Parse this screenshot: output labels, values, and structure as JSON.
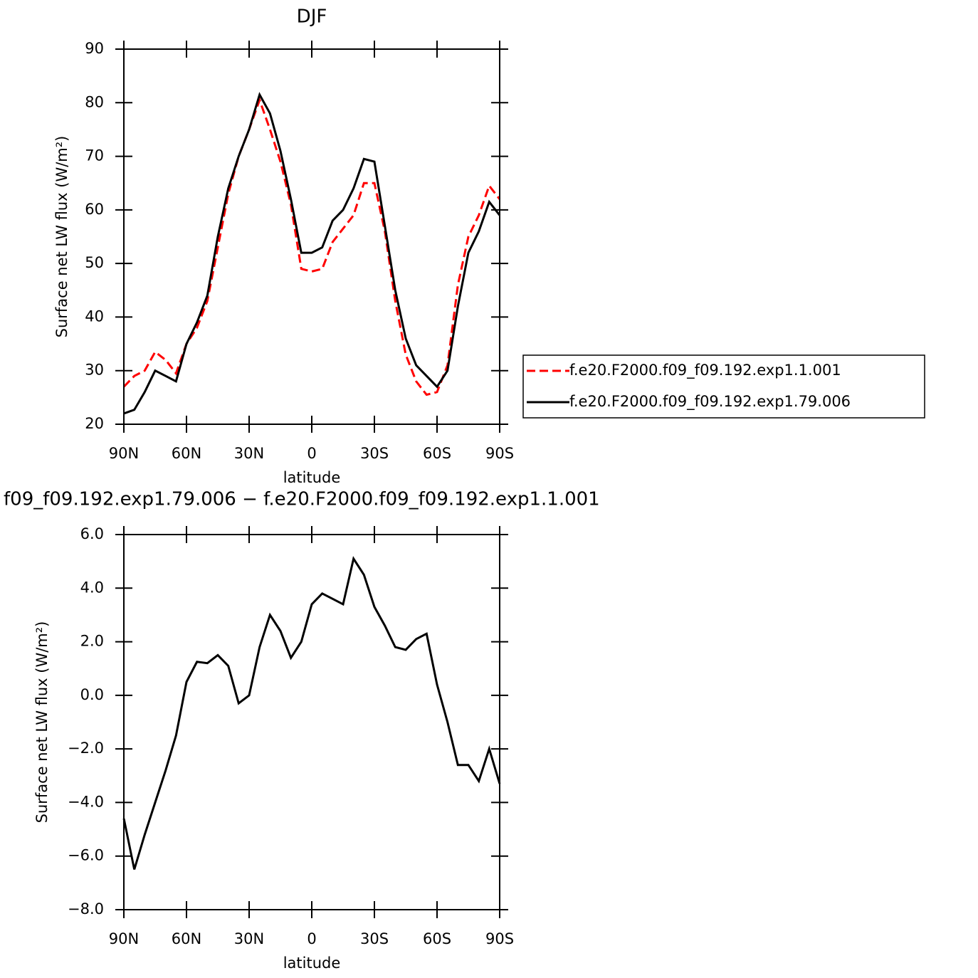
{
  "chart_data": [
    {
      "type": "line",
      "title": "DJF",
      "xlabel": "latitude",
      "ylabel": "Surface net LW flux (W/m²)",
      "x": [
        90,
        85,
        80,
        75,
        70,
        65,
        60,
        55,
        50,
        45,
        40,
        35,
        30,
        25,
        20,
        15,
        10,
        5,
        0,
        -5,
        -10,
        -15,
        -20,
        -25,
        -30,
        -35,
        -40,
        -45,
        -50,
        -55,
        -60,
        -65,
        -70,
        -75,
        -80,
        -85,
        -90
      ],
      "series": [
        {
          "name": "f.e20.F2000.f09_f09.192.exp1.1.001",
          "color": "#ff0000",
          "style": "dashed",
          "values": [
            27,
            29,
            30,
            33.5,
            32,
            29.5,
            35,
            38,
            43,
            53,
            63,
            70,
            75,
            80.5,
            75,
            69,
            61,
            49,
            48.5,
            49,
            54,
            56.5,
            59,
            65,
            65,
            56,
            43,
            33,
            28,
            25.5,
            26,
            31,
            46,
            55,
            59,
            64.5,
            62
          ]
        },
        {
          "name": "f.e20.F2000.f09_f09.192.exp1.79.006",
          "color": "#000000",
          "style": "solid",
          "values": [
            22,
            22.7,
            26,
            30,
            29,
            28,
            35,
            39,
            44,
            55,
            64,
            70,
            75,
            81.5,
            78,
            71,
            62,
            52,
            52,
            53,
            58,
            60,
            64,
            69.5,
            69,
            57,
            45,
            36,
            31,
            29,
            27,
            30,
            42,
            52,
            56,
            61.5,
            59
          ]
        }
      ],
      "xlim": [
        90,
        -90
      ],
      "xticks": [
        {
          "value": 90,
          "label": "90N"
        },
        {
          "value": 60,
          "label": "60N"
        },
        {
          "value": 30,
          "label": "30N"
        },
        0,
        {
          "value": -30,
          "label": "30S"
        },
        {
          "value": -60,
          "label": "60S"
        },
        {
          "value": -90,
          "label": "90S"
        }
      ],
      "ylim": [
        20,
        90
      ],
      "yticks": [
        20,
        30,
        40,
        50,
        60,
        70,
        80,
        90
      ],
      "legend": "right"
    },
    {
      "type": "line",
      "title": "f09_f09.192.exp1.79.006 − f.e20.F2000.f09_f09.192.exp1.1.001",
      "xlabel": "latitude",
      "ylabel": "Surface net LW flux (W/m²)",
      "x": [
        90,
        85,
        80,
        75,
        70,
        65,
        60,
        55,
        50,
        45,
        40,
        35,
        30,
        25,
        20,
        15,
        10,
        5,
        0,
        -5,
        -10,
        -15,
        -20,
        -25,
        -30,
        -35,
        -40,
        -45,
        -50,
        -55,
        -60,
        -65,
        -70,
        -75,
        -80,
        -85,
        -90
      ],
      "series": [
        {
          "color": "#000000",
          "style": "solid",
          "values": [
            -4.6,
            -6.5,
            -5.2,
            -4.0,
            -2.8,
            -1.5,
            0.5,
            1.25,
            1.2,
            1.5,
            1.1,
            -0.3,
            0.0,
            1.8,
            3.0,
            2.4,
            1.4,
            2.0,
            3.4,
            3.8,
            3.6,
            3.4,
            5.1,
            4.5,
            3.3,
            2.6,
            1.8,
            1.7,
            2.1,
            2.3,
            0.4,
            -1.0,
            -2.6,
            -2.6,
            -3.2,
            -2.0,
            -3.3
          ]
        }
      ],
      "xlim": [
        90,
        -90
      ],
      "xticks": [
        {
          "value": 90,
          "label": "90N"
        },
        {
          "value": 60,
          "label": "60N"
        },
        {
          "value": 30,
          "label": "30N"
        },
        0,
        {
          "value": -30,
          "label": "30S"
        },
        {
          "value": -60,
          "label": "60S"
        },
        {
          "value": -90,
          "label": "90S"
        }
      ],
      "ylim": [
        -8,
        6
      ],
      "yticks": [
        {
          "value": -8,
          "label": "−8.0"
        },
        {
          "value": -6,
          "label": "−6.0"
        },
        {
          "value": -4,
          "label": "−4.0"
        },
        {
          "value": -2,
          "label": "−2.0"
        },
        {
          "value": 0,
          "label": "0.0"
        },
        {
          "value": 2,
          "label": "2.0"
        },
        {
          "value": 4,
          "label": "4.0"
        },
        {
          "value": 6,
          "label": "6.0"
        }
      ]
    }
  ]
}
